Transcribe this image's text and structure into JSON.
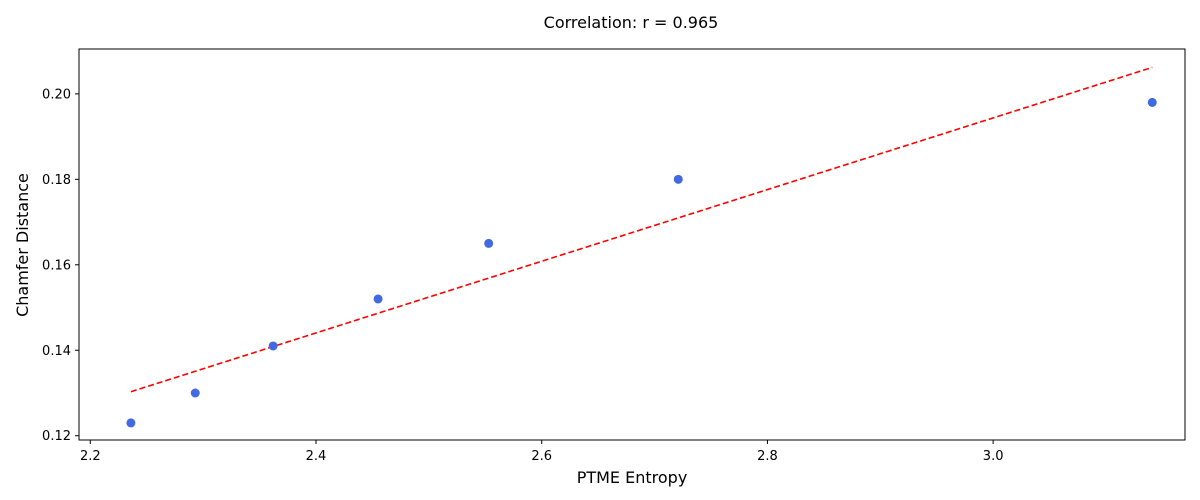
{
  "chart_data": {
    "type": "scatter",
    "title": "Correlation: r = 0.965",
    "xlabel": "PTME Entropy",
    "ylabel": "Chamfer Distance",
    "xlim": [
      2.19,
      3.17
    ],
    "ylim": [
      0.119,
      0.2105
    ],
    "x_ticks": [
      2.2,
      2.4,
      2.6,
      2.8,
      3.0
    ],
    "x_tick_labels": [
      "2.2",
      "2.4",
      "2.6",
      "2.8",
      "3.0"
    ],
    "y_ticks": [
      0.12,
      0.14,
      0.16,
      0.18,
      0.2
    ],
    "y_tick_labels": [
      "0.12",
      "0.14",
      "0.16",
      "0.18",
      "0.20"
    ],
    "grid": false,
    "series": [
      {
        "marker_color": "#4169e1",
        "x": [
          2.236,
          2.293,
          2.362,
          2.455,
          2.553,
          2.721,
          3.141
        ],
        "y": [
          0.123,
          0.13,
          0.141,
          0.152,
          0.165,
          0.18,
          0.198
        ]
      }
    ],
    "fit_line": {
      "style": "dashed",
      "color": "#ff0000",
      "x": [
        2.236,
        3.141
      ],
      "y": [
        0.1303,
        0.2062
      ]
    }
  }
}
